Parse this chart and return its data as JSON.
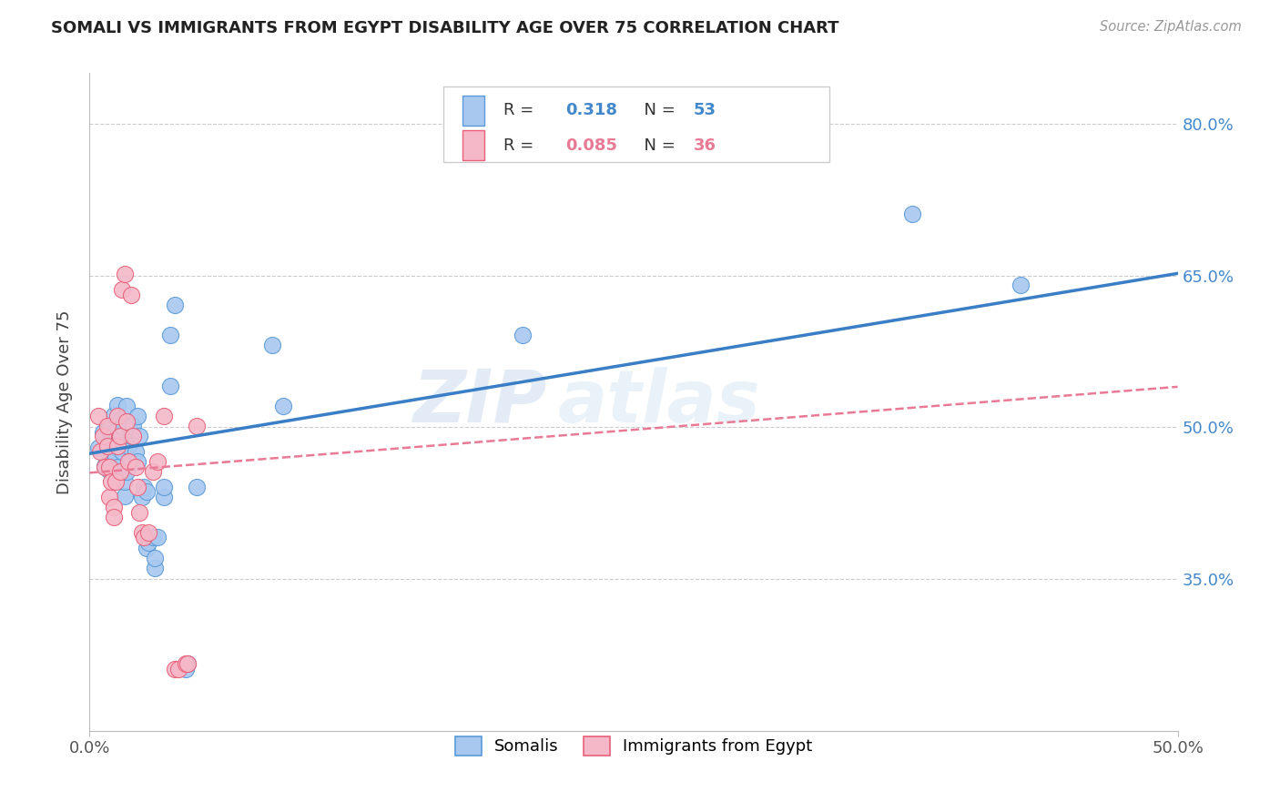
{
  "title": "SOMALI VS IMMIGRANTS FROM EGYPT DISABILITY AGE OVER 75 CORRELATION CHART",
  "source": "Source: ZipAtlas.com",
  "ylabel": "Disability Age Over 75",
  "ytick_labels": [
    "80.0%",
    "65.0%",
    "50.0%",
    "35.0%"
  ],
  "ytick_values": [
    0.8,
    0.65,
    0.5,
    0.35
  ],
  "xlim": [
    0.0,
    0.5
  ],
  "ylim": [
    0.2,
    0.85
  ],
  "watermark": "ZIPatlas",
  "legend_blue_r": "R = ",
  "legend_blue_r_val": "0.318",
  "legend_blue_n": "N = ",
  "legend_blue_n_val": "53",
  "legend_pink_r": "R = ",
  "legend_pink_r_val": "0.085",
  "legend_pink_n": "N = ",
  "legend_pink_n_val": "36",
  "legend_label_blue": "Somalis",
  "legend_label_pink": "Immigrants from Egypt",
  "blue_scatter_color": "#A8C8F0",
  "blue_edge_color": "#5A9AD8",
  "pink_scatter_color": "#F5B8C8",
  "pink_edge_color": "#E8607A",
  "trendline_blue_color": "#3A7EC6",
  "trendline_pink_color": "#E87A95",
  "grid_color": "#cccccc",
  "blue_scatter": [
    [
      0.004,
      0.48
    ],
    [
      0.006,
      0.495
    ],
    [
      0.007,
      0.462
    ],
    [
      0.008,
      0.476
    ],
    [
      0.009,
      0.502
    ],
    [
      0.009,
      0.457
    ],
    [
      0.01,
      0.491
    ],
    [
      0.01,
      0.487
    ],
    [
      0.011,
      0.512
    ],
    [
      0.011,
      0.481
    ],
    [
      0.012,
      0.471
    ],
    [
      0.012,
      0.496
    ],
    [
      0.013,
      0.461
    ],
    [
      0.013,
      0.522
    ],
    [
      0.014,
      0.507
    ],
    [
      0.014,
      0.491
    ],
    [
      0.015,
      0.501
    ],
    [
      0.015,
      0.476
    ],
    [
      0.016,
      0.432
    ],
    [
      0.016,
      0.446
    ],
    [
      0.017,
      0.456
    ],
    [
      0.017,
      0.521
    ],
    [
      0.018,
      0.501
    ],
    [
      0.018,
      0.481
    ],
    [
      0.019,
      0.466
    ],
    [
      0.019,
      0.491
    ],
    [
      0.02,
      0.501
    ],
    [
      0.021,
      0.476
    ],
    [
      0.022,
      0.466
    ],
    [
      0.022,
      0.511
    ],
    [
      0.023,
      0.491
    ],
    [
      0.024,
      0.431
    ],
    [
      0.025,
      0.441
    ],
    [
      0.026,
      0.436
    ],
    [
      0.026,
      0.381
    ],
    [
      0.027,
      0.386
    ],
    [
      0.029,
      0.391
    ],
    [
      0.03,
      0.361
    ],
    [
      0.03,
      0.371
    ],
    [
      0.031,
      0.391
    ],
    [
      0.034,
      0.431
    ],
    [
      0.034,
      0.441
    ],
    [
      0.037,
      0.541
    ],
    [
      0.037,
      0.591
    ],
    [
      0.039,
      0.621
    ],
    [
      0.044,
      0.261
    ],
    [
      0.045,
      0.266
    ],
    [
      0.049,
      0.441
    ],
    [
      0.084,
      0.581
    ],
    [
      0.089,
      0.521
    ],
    [
      0.199,
      0.591
    ],
    [
      0.378,
      0.711
    ],
    [
      0.428,
      0.641
    ]
  ],
  "pink_scatter": [
    [
      0.004,
      0.511
    ],
    [
      0.005,
      0.476
    ],
    [
      0.006,
      0.491
    ],
    [
      0.007,
      0.461
    ],
    [
      0.008,
      0.481
    ],
    [
      0.008,
      0.501
    ],
    [
      0.009,
      0.461
    ],
    [
      0.009,
      0.431
    ],
    [
      0.01,
      0.446
    ],
    [
      0.011,
      0.421
    ],
    [
      0.011,
      0.411
    ],
    [
      0.012,
      0.446
    ],
    [
      0.013,
      0.481
    ],
    [
      0.013,
      0.511
    ],
    [
      0.014,
      0.456
    ],
    [
      0.014,
      0.491
    ],
    [
      0.015,
      0.636
    ],
    [
      0.016,
      0.651
    ],
    [
      0.017,
      0.506
    ],
    [
      0.018,
      0.466
    ],
    [
      0.019,
      0.631
    ],
    [
      0.02,
      0.491
    ],
    [
      0.021,
      0.461
    ],
    [
      0.022,
      0.441
    ],
    [
      0.023,
      0.416
    ],
    [
      0.024,
      0.396
    ],
    [
      0.025,
      0.391
    ],
    [
      0.027,
      0.396
    ],
    [
      0.029,
      0.456
    ],
    [
      0.031,
      0.466
    ],
    [
      0.034,
      0.511
    ],
    [
      0.039,
      0.261
    ],
    [
      0.041,
      0.261
    ],
    [
      0.044,
      0.266
    ],
    [
      0.045,
      0.266
    ],
    [
      0.049,
      0.501
    ]
  ],
  "blue_trendline_x": [
    0.0,
    0.5
  ],
  "blue_trendline_y": [
    0.474,
    0.652
  ],
  "pink_trendline_x": [
    0.0,
    0.5
  ],
  "pink_trendline_y": [
    0.455,
    0.54
  ]
}
